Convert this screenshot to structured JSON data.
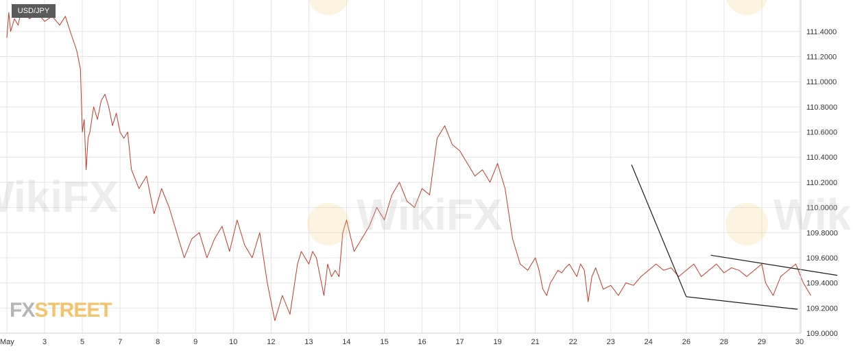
{
  "symbol": "USD/JPY",
  "logo": {
    "part1": "FX",
    "part2": "STREET"
  },
  "watermark": "WikiFX",
  "colors": {
    "line": "#c0392b",
    "trend": "#1a1a1a",
    "grid": "#e4e4e4",
    "badge": "#5a5a5a"
  },
  "chart_data": {
    "type": "line",
    "x_tick_labels": [
      "May",
      "3",
      "5",
      "7",
      "8",
      "9",
      "10",
      "12",
      "13",
      "14",
      "15",
      "16",
      "17",
      "19",
      "21",
      "22",
      "23",
      "24",
      "26",
      "28",
      "29",
      "30"
    ],
    "y_tick_labels": [
      "111.4000",
      "111.2000",
      "111.0000",
      "110.8000",
      "110.6000",
      "110.4000",
      "110.2000",
      "110.0000",
      "109.8000",
      "109.6000",
      "109.4000",
      "109.2000",
      "109.0000"
    ],
    "ylim": [
      109.0,
      111.65
    ],
    "grid": true,
    "series": [
      {
        "x": [
          0,
          0.05,
          0.1,
          0.2,
          0.3,
          0.4,
          0.6,
          0.8,
          1.0,
          1.2,
          1.4,
          1.55,
          1.7,
          1.85,
          1.95,
          2.0,
          2.05,
          2.1,
          2.15,
          2.2,
          2.3,
          2.4,
          2.5,
          2.6,
          2.7,
          2.8,
          2.9,
          3.0,
          3.1,
          3.2,
          3.3,
          3.5,
          3.7,
          3.9,
          4.1,
          4.3,
          4.5,
          4.7,
          4.9,
          5.1,
          5.3,
          5.5,
          5.7,
          5.9,
          6.1,
          6.3,
          6.5,
          6.7,
          6.9,
          7.1,
          7.3,
          7.5,
          7.7,
          7.8,
          7.9,
          8.0,
          8.1,
          8.2,
          8.3,
          8.4,
          8.5,
          8.6,
          8.7,
          8.8,
          8.9,
          9.0,
          9.2,
          9.4,
          9.6,
          9.8,
          10.0,
          10.2,
          10.4,
          10.6,
          10.8,
          11.0,
          11.2,
          11.4,
          11.6,
          11.8,
          12.0,
          12.2,
          12.4,
          12.6,
          12.8,
          13.0,
          13.2,
          13.4,
          13.6,
          13.8,
          14.0,
          14.1,
          14.2,
          14.3,
          14.4,
          14.5,
          14.6,
          14.7,
          14.8,
          14.9,
          15.0,
          15.1,
          15.2,
          15.3,
          15.4,
          15.5,
          15.6,
          15.8,
          16.0,
          16.2,
          16.4,
          16.6,
          16.8,
          17.0,
          17.2,
          17.4,
          17.6,
          17.8,
          18.0,
          18.2,
          18.4,
          18.6,
          18.8,
          19.0,
          19.2,
          19.4,
          19.6,
          19.8,
          20.0,
          20.1,
          20.3,
          20.5,
          20.7,
          20.9,
          21.1,
          21.3
        ],
        "values": [
          111.35,
          111.55,
          111.4,
          111.5,
          111.45,
          111.6,
          111.5,
          111.55,
          111.48,
          111.52,
          111.45,
          111.52,
          111.38,
          111.25,
          111.1,
          110.6,
          110.7,
          110.3,
          110.55,
          110.6,
          110.8,
          110.7,
          110.85,
          110.9,
          110.8,
          110.65,
          110.75,
          110.6,
          110.55,
          110.6,
          110.3,
          110.15,
          110.25,
          109.95,
          110.15,
          110.0,
          109.8,
          109.6,
          109.75,
          109.8,
          109.6,
          109.75,
          109.85,
          109.65,
          109.9,
          109.7,
          109.6,
          109.8,
          109.4,
          109.1,
          109.3,
          109.15,
          109.55,
          109.65,
          109.6,
          109.55,
          109.65,
          109.6,
          109.45,
          109.3,
          109.55,
          109.45,
          109.5,
          109.45,
          109.8,
          109.9,
          109.65,
          109.75,
          109.85,
          110.0,
          109.9,
          110.1,
          110.2,
          110.05,
          110.0,
          110.15,
          110.1,
          110.55,
          110.65,
          110.5,
          110.45,
          110.35,
          110.25,
          110.3,
          110.2,
          110.35,
          110.15,
          109.75,
          109.55,
          109.5,
          109.6,
          109.5,
          109.35,
          109.3,
          109.4,
          109.45,
          109.5,
          109.48,
          109.52,
          109.55,
          109.5,
          109.45,
          109.55,
          109.5,
          109.25,
          109.45,
          109.52,
          109.35,
          109.38,
          109.3,
          109.4,
          109.38,
          109.45,
          109.5,
          109.55,
          109.5,
          109.52,
          109.45,
          109.5,
          109.55,
          109.45,
          109.5,
          109.55,
          109.48,
          109.52,
          109.5,
          109.45,
          109.5,
          109.55,
          109.4,
          109.3,
          109.45,
          109.5,
          109.55,
          109.4,
          109.3
        ]
      }
    ],
    "trendlines": [
      {
        "x": [
          16.55,
          18.0
        ],
        "y": [
          110.34,
          109.29
        ]
      },
      {
        "x": [
          18.0,
          20.95
        ],
        "y": [
          109.29,
          109.19
        ]
      },
      {
        "x": [
          18.65,
          22.0
        ],
        "y": [
          109.62,
          109.46
        ]
      }
    ]
  }
}
